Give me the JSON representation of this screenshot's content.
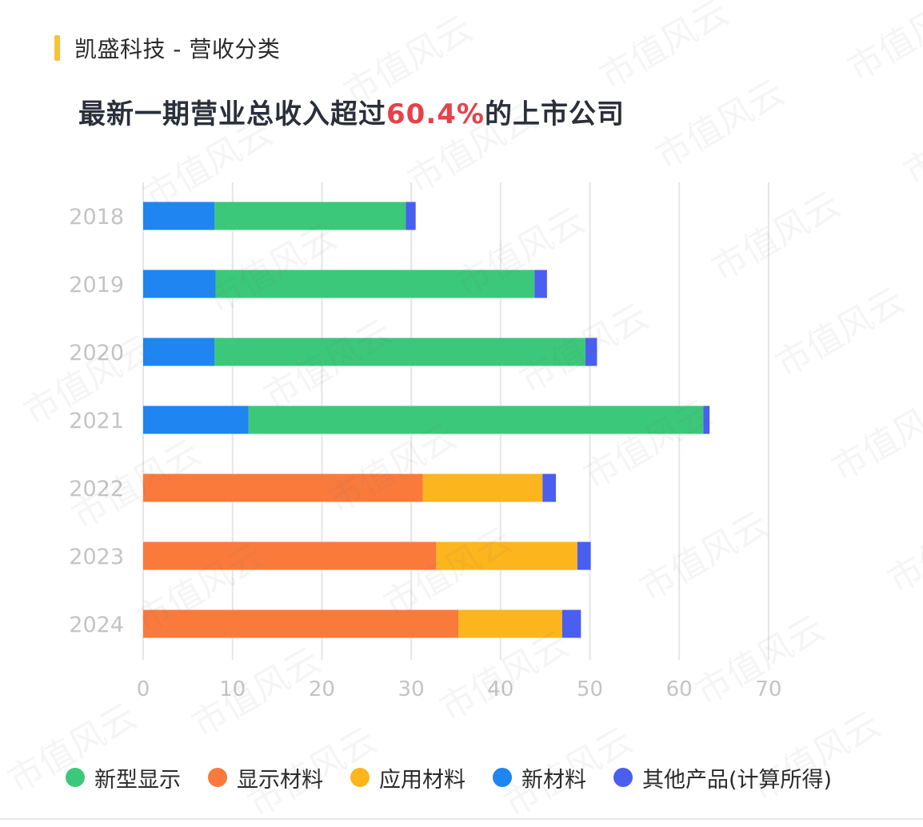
{
  "header": {
    "title": "凯盛科技 - 营收分类"
  },
  "subtitle": {
    "prefix": "最新一期营业总收入超过",
    "highlight": "60.4%",
    "suffix": "的上市公司"
  },
  "watermark_text": "市值风云",
  "chart_data": {
    "type": "bar",
    "orientation": "horizontal",
    "stacked": true,
    "categories": [
      "2018",
      "2019",
      "2020",
      "2021",
      "2022",
      "2023",
      "2024"
    ],
    "xlim": [
      0,
      70
    ],
    "xticks": [
      0,
      10,
      20,
      30,
      40,
      50,
      60,
      70
    ],
    "grid": true,
    "legend_position": "bottom",
    "series": [
      {
        "name": "新材料",
        "color": "#1f85f0",
        "values": [
          8.0,
          8.1,
          8.0,
          11.8,
          0,
          0,
          0
        ]
      },
      {
        "name": "显示材料",
        "color": "#fa7a3c",
        "values": [
          0,
          0,
          0,
          0,
          31.3,
          32.8,
          35.3
        ]
      },
      {
        "name": "新型显示",
        "color": "#3bc87a",
        "values": [
          21.4,
          35.7,
          41.5,
          50.9,
          0,
          0,
          0
        ]
      },
      {
        "name": "应用材料",
        "color": "#fdb51e",
        "values": [
          0,
          0,
          0,
          0,
          13.4,
          15.8,
          11.6
        ]
      },
      {
        "name": "其他产品(计算所得)",
        "color": "#4a5ef0",
        "values": [
          1.1,
          1.4,
          1.3,
          0.7,
          1.5,
          1.5,
          2.1
        ]
      }
    ],
    "legend_order": [
      "新型显示",
      "显示材料",
      "应用材料",
      "新材料",
      "其他产品(计算所得)"
    ]
  }
}
